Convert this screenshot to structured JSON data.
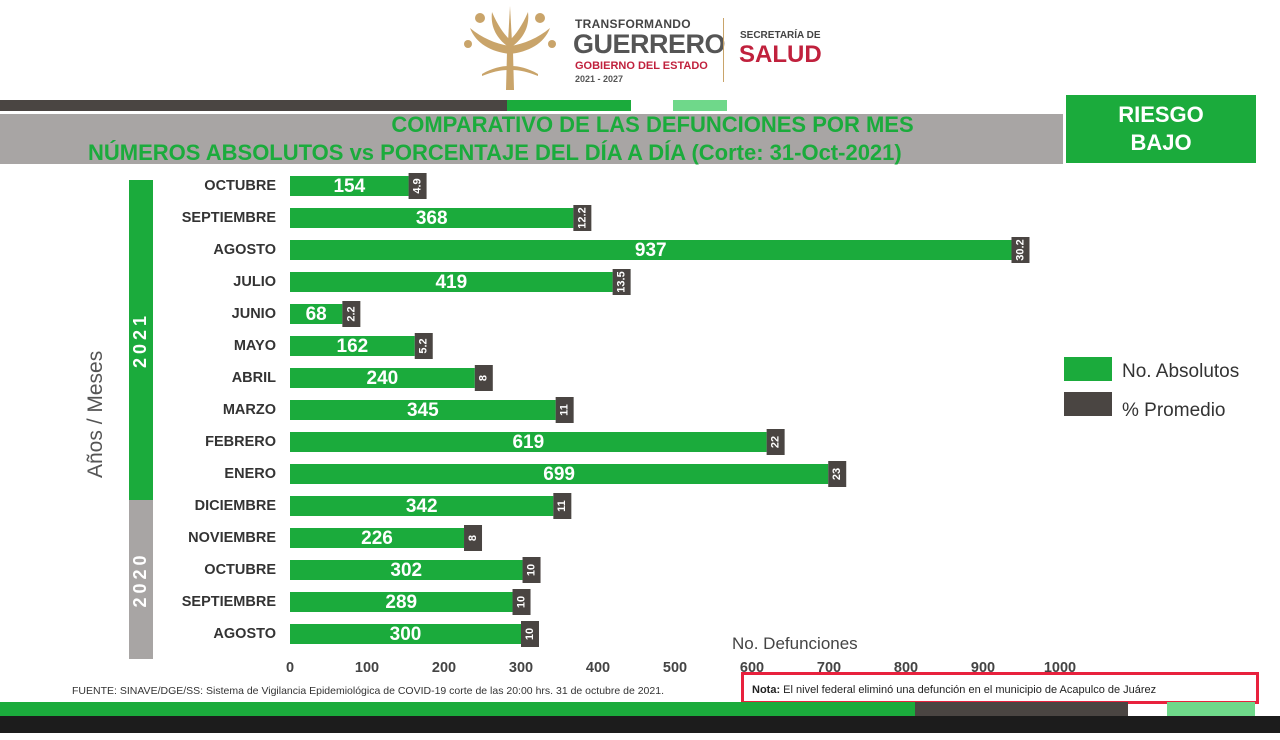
{
  "header": {
    "brand_top": "TRANSFORMANDO",
    "brand_main": "GUERRERO",
    "brand_sub": "GOBIERNO DEL ESTADO",
    "brand_years": "2021 - 2027",
    "secretaria_top": "SECRETARÍA DE",
    "secretaria_main": "SALUD"
  },
  "risk": {
    "line1": "RIESGO",
    "line2": "BAJO"
  },
  "colors": {
    "green": "#1bab3c",
    "dark": "#4a4542",
    "gray": "#a8a5a4",
    "red": "#e8213d"
  },
  "footer": {
    "source": "FUENTE: SINAVE/DGE/SS: Sistema de Vigilancia Epidemiológica de COVID-19 corte de las 20:00 hrs. 31 de octubre de 2021.",
    "note_label": "Nota:",
    "note_text": " El nivel federal eliminó una defunción en el municipio de  Acapulco de Juárez"
  },
  "chart_data": {
    "type": "bar",
    "orientation": "horizontal",
    "title": "COMPARATIVO DE LAS DEFUNCIONES POR MES",
    "subtitle": "NÚMEROS ABSOLUTOS vs PORCENTAJE DEL DÍA A DÍA   (Corte: 31-Oct-2021)",
    "xlabel": "No. Defunciones",
    "ylabel": "Años / Meses",
    "xlim": [
      0,
      1000
    ],
    "xticks": [
      0,
      100,
      200,
      300,
      400,
      500,
      600,
      700,
      800,
      900,
      1000
    ],
    "groups": [
      {
        "label": "2021",
        "color": "#1bab3c",
        "from": 0,
        "to": 9
      },
      {
        "label": "2020",
        "color": "#a8a5a4",
        "from": 10,
        "to": 14
      }
    ],
    "categories": [
      "OCTUBRE",
      "SEPTIEMBRE",
      "AGOSTO",
      "JULIO",
      "JUNIO",
      "MAYO",
      "ABRIL",
      "MARZO",
      "FEBRERO",
      "ENERO",
      "DICIEMBRE",
      "NOVIEMBRE",
      "OCTUBRE",
      "SEPTIEMBRE",
      "AGOSTO"
    ],
    "series": [
      {
        "name": "No. Absolutos",
        "color": "#1bab3c",
        "values": [
          154,
          368,
          937,
          419,
          68,
          162,
          240,
          345,
          619,
          699,
          342,
          226,
          302,
          289,
          300
        ]
      },
      {
        "name": "% Promedio",
        "color": "#4a4542",
        "values": [
          "4.9",
          "12.2",
          "30.2",
          "13.5",
          "2.2",
          "5.2",
          "8",
          "11",
          "22",
          "23",
          "11",
          "8",
          "10",
          "10",
          "10"
        ]
      }
    ],
    "legend": "right"
  }
}
